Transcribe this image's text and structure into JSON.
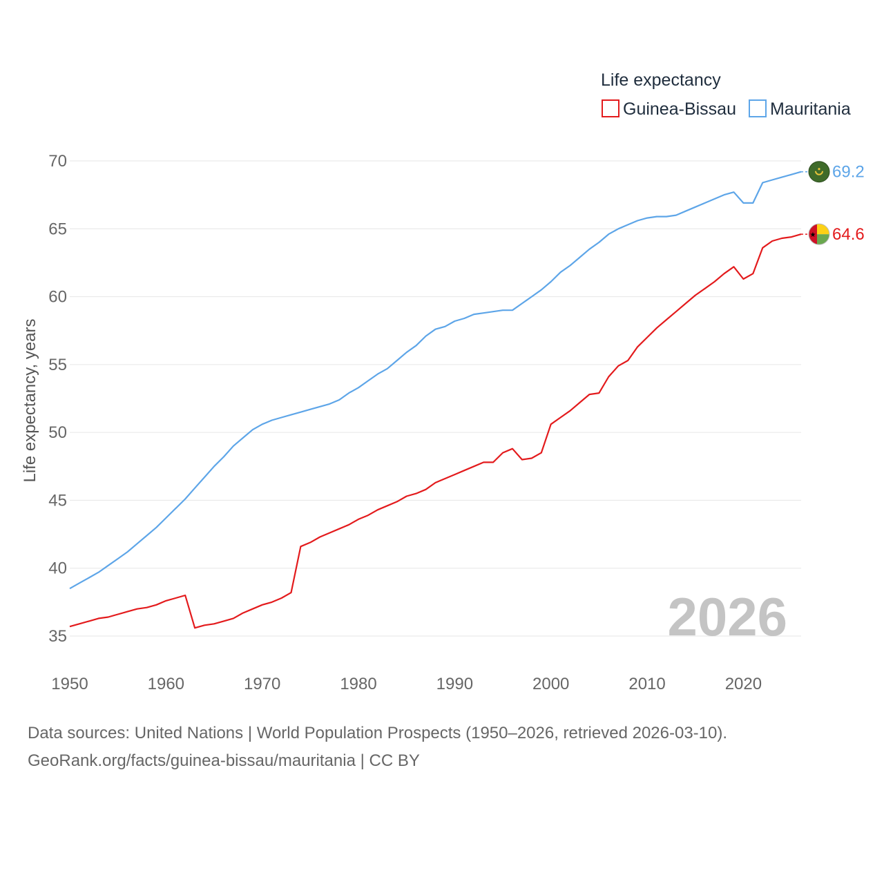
{
  "chart_data": {
    "type": "line",
    "title": "Life expectancy",
    "ylabel": "Life expectancy, years",
    "xlabel": "",
    "xlim": [
      1950,
      2026
    ],
    "ylim": [
      33,
      71
    ],
    "yticks": [
      35,
      40,
      45,
      50,
      55,
      60,
      65,
      70
    ],
    "xticks": [
      1950,
      1960,
      1970,
      1980,
      1990,
      2000,
      2010,
      2020
    ],
    "grid": true,
    "legend_position": "top-right",
    "year_label": "2026",
    "series": [
      {
        "name": "Guinea-Bissau",
        "color": "#e31a1c",
        "end_label": "64.6",
        "flag": "guinea-bissau-flag-icon",
        "x": [
          1950,
          1951,
          1952,
          1953,
          1954,
          1955,
          1956,
          1957,
          1958,
          1959,
          1960,
          1961,
          1962,
          1963,
          1964,
          1965,
          1966,
          1967,
          1968,
          1969,
          1970,
          1971,
          1972,
          1973,
          1974,
          1975,
          1976,
          1977,
          1978,
          1979,
          1980,
          1981,
          1982,
          1983,
          1984,
          1985,
          1986,
          1987,
          1988,
          1989,
          1990,
          1991,
          1992,
          1993,
          1994,
          1995,
          1996,
          1997,
          1998,
          1999,
          2000,
          2001,
          2002,
          2003,
          2004,
          2005,
          2006,
          2007,
          2008,
          2009,
          2010,
          2011,
          2012,
          2013,
          2014,
          2015,
          2016,
          2017,
          2018,
          2019,
          2020,
          2021,
          2022,
          2023,
          2024,
          2025,
          2026
        ],
        "values": [
          35.7,
          35.9,
          36.1,
          36.3,
          36.4,
          36.6,
          36.8,
          37.0,
          37.1,
          37.3,
          37.6,
          37.8,
          38.0,
          35.6,
          35.8,
          35.9,
          36.1,
          36.3,
          36.7,
          37.0,
          37.3,
          37.5,
          37.8,
          38.2,
          41.6,
          41.9,
          42.3,
          42.6,
          42.9,
          43.2,
          43.6,
          43.9,
          44.3,
          44.6,
          44.9,
          45.3,
          45.5,
          45.8,
          46.3,
          46.6,
          46.9,
          47.2,
          47.5,
          47.8,
          47.8,
          48.5,
          48.8,
          48.0,
          48.1,
          48.5,
          50.6,
          51.1,
          51.6,
          52.2,
          52.8,
          52.9,
          54.1,
          54.9,
          55.3,
          56.3,
          57.0,
          57.7,
          58.3,
          58.9,
          59.5,
          60.1,
          60.6,
          61.1,
          61.7,
          62.2,
          61.3,
          61.7,
          63.6,
          64.1,
          64.3,
          64.4,
          64.6
        ]
      },
      {
        "name": "Mauritania",
        "color": "#5da5e8",
        "end_label": "69.2",
        "flag": "mauritania-flag-icon",
        "x": [
          1950,
          1951,
          1952,
          1953,
          1954,
          1955,
          1956,
          1957,
          1958,
          1959,
          1960,
          1961,
          1962,
          1963,
          1964,
          1965,
          1966,
          1967,
          1968,
          1969,
          1970,
          1971,
          1972,
          1973,
          1974,
          1975,
          1976,
          1977,
          1978,
          1979,
          1980,
          1981,
          1982,
          1983,
          1984,
          1985,
          1986,
          1987,
          1988,
          1989,
          1990,
          1991,
          1992,
          1993,
          1994,
          1995,
          1996,
          1997,
          1998,
          1999,
          2000,
          2001,
          2002,
          2003,
          2004,
          2005,
          2006,
          2007,
          2008,
          2009,
          2010,
          2011,
          2012,
          2013,
          2014,
          2015,
          2016,
          2017,
          2018,
          2019,
          2020,
          2021,
          2022,
          2023,
          2024,
          2025,
          2026
        ],
        "values": [
          38.5,
          38.9,
          39.3,
          39.7,
          40.2,
          40.7,
          41.2,
          41.8,
          42.4,
          43.0,
          43.7,
          44.4,
          45.1,
          45.9,
          46.7,
          47.5,
          48.2,
          49.0,
          49.6,
          50.2,
          50.6,
          50.9,
          51.1,
          51.3,
          51.5,
          51.7,
          51.9,
          52.1,
          52.4,
          52.9,
          53.3,
          53.8,
          54.3,
          54.7,
          55.3,
          55.9,
          56.4,
          57.1,
          57.6,
          57.8,
          58.2,
          58.4,
          58.7,
          58.8,
          58.9,
          59.0,
          59.0,
          59.5,
          60.0,
          60.5,
          61.1,
          61.8,
          62.3,
          62.9,
          63.5,
          64.0,
          64.6,
          65.0,
          65.3,
          65.6,
          65.8,
          65.9,
          65.9,
          66.0,
          66.3,
          66.6,
          66.9,
          67.2,
          67.5,
          67.7,
          66.9,
          66.9,
          68.4,
          68.6,
          68.8,
          69.0,
          69.2
        ]
      }
    ]
  },
  "source": {
    "line1": "Data sources: United Nations | World Population Prospects (1950–2026, retrieved 2026-03-10).",
    "line2": "GeoRank.org/facts/guinea-bissau/mauritania | CC BY"
  }
}
